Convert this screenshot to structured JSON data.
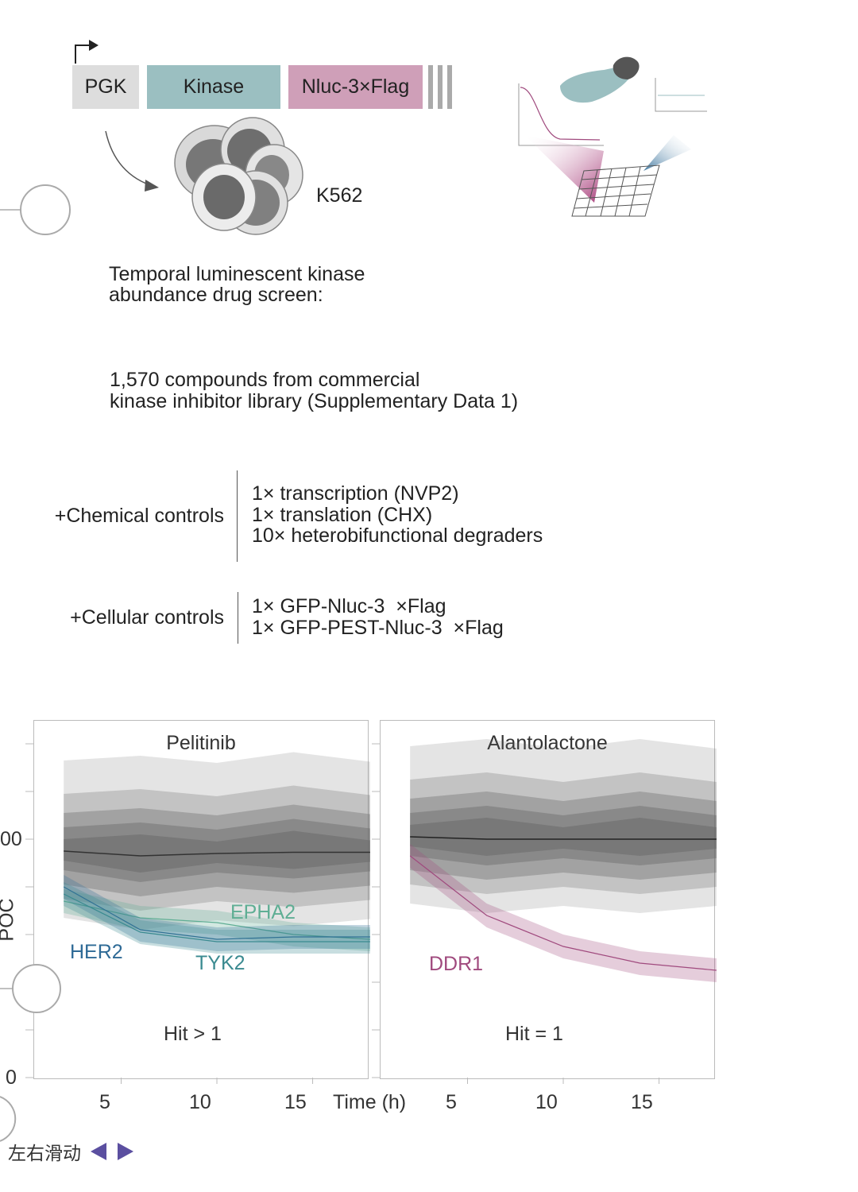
{
  "construct": {
    "pgk": "PGK",
    "kinase": "Kinase",
    "nluc": "Nluc-3×Flag"
  },
  "cell_line": "K562",
  "screen_title": "Temporal luminescent kinase\nabundance drug screen:",
  "compounds": "1,570 compounds from commercial\nkinase inhibitor library (Supplementary Data 1)",
  "chemical_controls": {
    "label": "+Chemical controls",
    "items": [
      "1× transcription (NVP2)",
      "1× translation (CHX)",
      "10× heterobifunctional degraders"
    ]
  },
  "cellular_controls": {
    "label": "+Cellular controls",
    "items": [
      "1× GFP-Nluc-3  ×Flag",
      "1× GFP-PEST-Nluc-3  ×Flag"
    ]
  },
  "axes": {
    "y_label": "POC",
    "y_tick_top": "00",
    "y_tick_bottom": "0",
    "x_ticks": [
      "5",
      "10",
      "15"
    ],
    "x_label": "Time (h)"
  },
  "chart_data": [
    {
      "type": "line",
      "title": "Pelitinib",
      "annotation": "Hit > 1",
      "xlabel": "Time (h)",
      "ylabel": "POC",
      "xlim": [
        0,
        19.5
      ],
      "ylim": [
        0,
        150
      ],
      "series": [
        {
          "name": "",
          "color": "#333333",
          "x": [
            2,
            6,
            10,
            14,
            18
          ],
          "values": [
            95,
            93,
            94,
            94.5,
            94.5
          ]
        },
        {
          "name": "EPHA2",
          "color": "#5fae94",
          "x": [
            2,
            6,
            10,
            14,
            18
          ],
          "values": [
            74,
            67,
            65,
            60,
            58
          ]
        },
        {
          "name": "HER2",
          "color": "#2e6a96",
          "x": [
            2,
            6,
            10,
            14,
            18
          ],
          "values": [
            80,
            62,
            58,
            59,
            59
          ]
        },
        {
          "name": "TYK2",
          "color": "#3a8a90",
          "x": [
            2,
            6,
            10,
            14,
            18
          ],
          "values": [
            77,
            61,
            57,
            57,
            57
          ]
        }
      ]
    },
    {
      "type": "line",
      "title": "Alantolactone",
      "annotation": "Hit = 1",
      "xlabel": "Time (h)",
      "ylabel": "POC",
      "xlim": [
        0,
        19.5
      ],
      "ylim": [
        0,
        150
      ],
      "series": [
        {
          "name": "",
          "color": "#222222",
          "x": [
            2,
            6,
            10,
            14,
            18
          ],
          "values": [
            101,
            100,
            100,
            100,
            100
          ]
        },
        {
          "name": "DDR1",
          "color": "#a04a7e",
          "x": [
            2,
            6,
            10,
            14,
            18
          ],
          "values": [
            93,
            68,
            55,
            48,
            45
          ]
        }
      ]
    }
  ],
  "nav": {
    "label": "左右滑动"
  },
  "colors": {
    "kinase": "#9bbfc1",
    "nluc": "#cf9fb8",
    "pgk": "#dddddd",
    "ddr1": "#a04a7e",
    "her2": "#2e6a96",
    "epha2": "#5fae94"
  }
}
